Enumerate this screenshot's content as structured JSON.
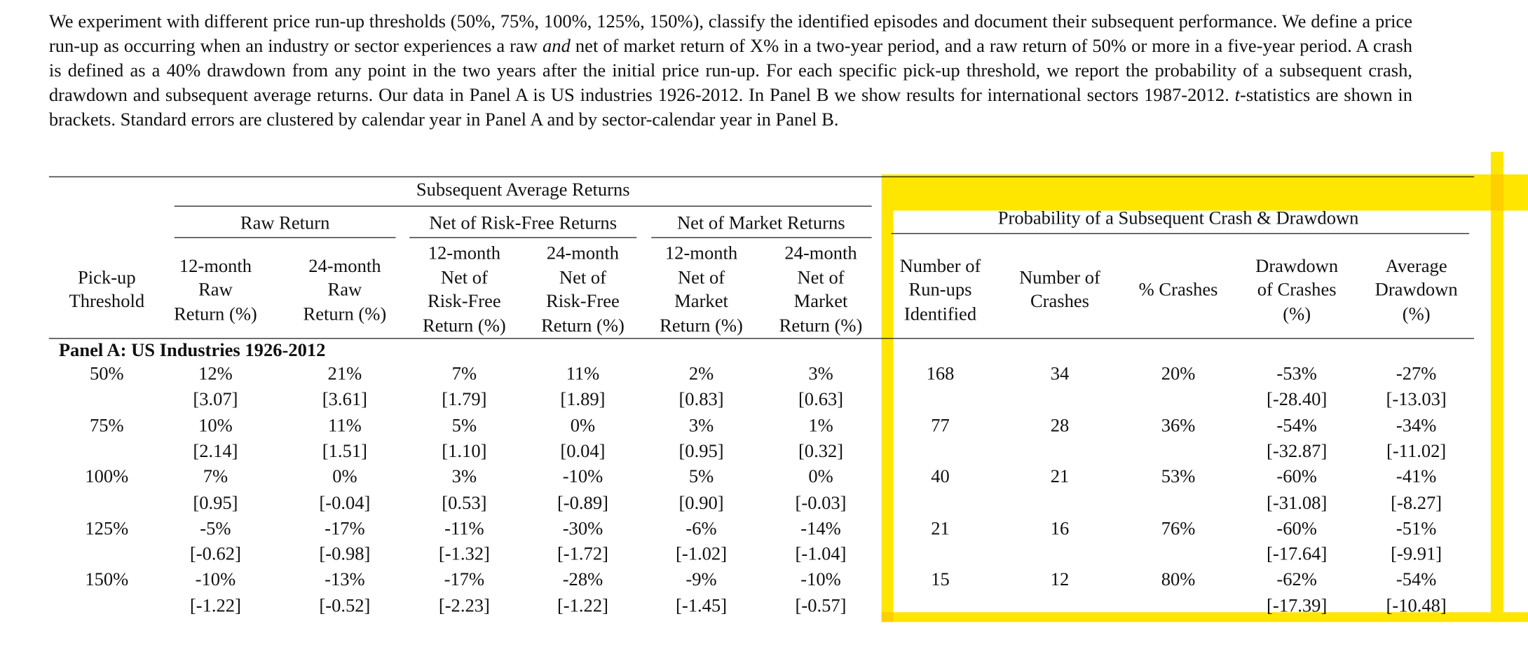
{
  "paragraph": [
    {
      "text": "We experiment with different price run-up thresholds (50%, 75%, 100%, 125%, 150%), classify the identified episodes and document their subsequent performance.  We define a price run-up as occurring when an industry or sector experiences a raw ",
      "italic": false
    },
    {
      "text": "and",
      "italic": true
    },
    {
      "text": " net of market return of X% in a two-year period, and a raw return of 50% or more in a five-year period. A crash is defined as a 40% drawdown from any point in the two years after the initial price run-up. For each specific pick-up threshold, we report the probability of a subsequent crash, drawdown and subsequent average returns. Our data in Panel A is US industries 1926-2012. In Panel B we show results for international sectors 1987-2012. ",
      "italic": false
    },
    {
      "text": "t",
      "italic": true
    },
    {
      "text": "-statistics are shown in brackets. Standard errors are clustered by calendar year in Panel A and by sector-calendar year in Panel B.",
      "italic": false
    }
  ],
  "table": {
    "group_header": "Subsequent Average Returns",
    "subgroups": [
      "Raw Return",
      "Net of Risk-Free Returns",
      "Net of Market Returns"
    ],
    "right_group": "Probability of a Subsequent Crash & Drawdown",
    "columns": [
      [
        "Pick-up",
        "Threshold"
      ],
      [
        "12-month",
        "Raw",
        "Return (%)"
      ],
      [
        "24-month",
        "Raw",
        "Return (%)"
      ],
      [
        "12-month",
        "Net of",
        "Risk-Free",
        "Return (%)"
      ],
      [
        "24-month",
        "Net of",
        "Risk-Free",
        "Return (%)"
      ],
      [
        "12-month",
        "Net of",
        "Market",
        "Return (%)"
      ],
      [
        "24-month",
        "Net of",
        "Market",
        "Return (%)"
      ],
      [
        "Number of",
        "Run-ups",
        "Identified"
      ],
      [
        "Number of",
        "Crashes"
      ],
      [
        "% Crashes"
      ],
      [
        "Drawdown",
        "of Crashes",
        "(%)"
      ],
      [
        "Average",
        "Drawdown",
        "(%)"
      ]
    ],
    "panel": "Panel A: US Industries 1926-2012",
    "rows": [
      {
        "threshold": "50%",
        "values": [
          "12%",
          "21%",
          "7%",
          "11%",
          "2%",
          "3%",
          "168",
          "34",
          "20%",
          "-53%",
          "-27%"
        ],
        "tstats": [
          "[3.07]",
          "[3.61]",
          "[1.79]",
          "[1.89]",
          "[0.83]",
          "[0.63]",
          null,
          null,
          null,
          "[-28.40]",
          "[-13.03]"
        ]
      },
      {
        "threshold": "75%",
        "values": [
          "10%",
          "11%",
          "5%",
          "0%",
          "3%",
          "1%",
          "77",
          "28",
          "36%",
          "-54%",
          "-34%"
        ],
        "tstats": [
          "[2.14]",
          "[1.51]",
          "[1.10]",
          "[0.04]",
          "[0.95]",
          "[0.32]",
          null,
          null,
          null,
          "[-32.87]",
          "[-11.02]"
        ]
      },
      {
        "threshold": "100%",
        "values": [
          "7%",
          "0%",
          "3%",
          "-10%",
          "5%",
          "0%",
          "40",
          "21",
          "53%",
          "-60%",
          "-41%"
        ],
        "tstats": [
          "[0.95]",
          "[-0.04]",
          "[0.53]",
          "[-0.89]",
          "[0.90]",
          "[-0.03]",
          null,
          null,
          null,
          "[-31.08]",
          "[-8.27]"
        ]
      },
      {
        "threshold": "125%",
        "values": [
          "-5%",
          "-17%",
          "-11%",
          "-30%",
          "-6%",
          "-14%",
          "21",
          "16",
          "76%",
          "-60%",
          "-51%"
        ],
        "tstats": [
          "[-0.62]",
          "[-0.98]",
          "[-1.32]",
          "[-1.72]",
          "[-1.02]",
          "[-1.04]",
          null,
          null,
          null,
          "[-17.64]",
          "[-9.91]"
        ]
      },
      {
        "threshold": "150%",
        "values": [
          "-10%",
          "-13%",
          "-17%",
          "-28%",
          "-9%",
          "-10%",
          "15",
          "12",
          "80%",
          "-62%",
          "-54%"
        ],
        "tstats": [
          "[-1.22]",
          "[-0.52]",
          "[-2.23]",
          "[-1.22]",
          "[-1.45]",
          "[-0.57]",
          null,
          null,
          null,
          "[-17.39]",
          "[-10.48]"
        ]
      }
    ]
  }
}
